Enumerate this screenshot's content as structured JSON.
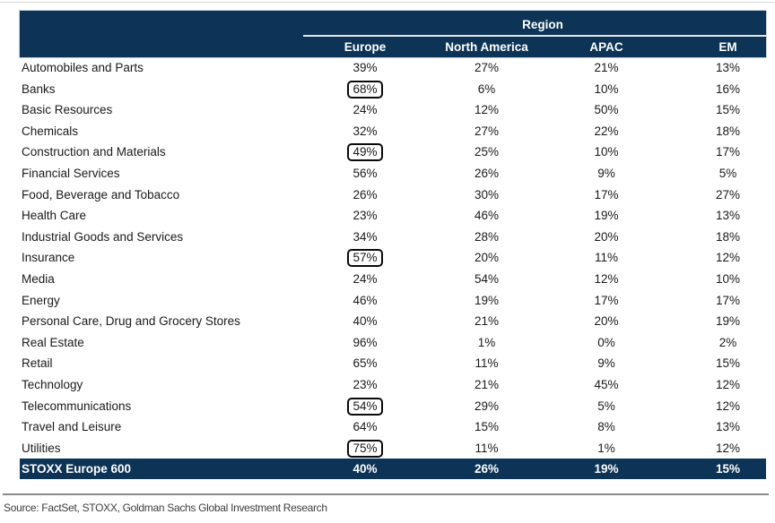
{
  "table": {
    "region_header": "Region",
    "columns": [
      "Europe",
      "North America",
      "APAC",
      "EM"
    ],
    "rows": [
      {
        "label": "Automobiles and Parts",
        "values": [
          "39%",
          "27%",
          "21%",
          "13%"
        ],
        "europe_boxed": false
      },
      {
        "label": "Banks",
        "values": [
          "68%",
          "6%",
          "10%",
          "16%"
        ],
        "europe_boxed": true
      },
      {
        "label": "Basic Resources",
        "values": [
          "24%",
          "12%",
          "50%",
          "15%"
        ],
        "europe_boxed": false
      },
      {
        "label": "Chemicals",
        "values": [
          "32%",
          "27%",
          "22%",
          "18%"
        ],
        "europe_boxed": false
      },
      {
        "label": "Construction and Materials",
        "values": [
          "49%",
          "25%",
          "10%",
          "17%"
        ],
        "europe_boxed": true
      },
      {
        "label": "Financial Services",
        "values": [
          "56%",
          "26%",
          "9%",
          "5%"
        ],
        "europe_boxed": false
      },
      {
        "label": "Food, Beverage and Tobacco",
        "values": [
          "26%",
          "30%",
          "17%",
          "27%"
        ],
        "europe_boxed": false
      },
      {
        "label": "Health Care",
        "values": [
          "23%",
          "46%",
          "19%",
          "13%"
        ],
        "europe_boxed": false
      },
      {
        "label": "Industrial Goods and Services",
        "values": [
          "34%",
          "28%",
          "20%",
          "18%"
        ],
        "europe_boxed": false
      },
      {
        "label": "Insurance",
        "values": [
          "57%",
          "20%",
          "11%",
          "12%"
        ],
        "europe_boxed": true
      },
      {
        "label": "Media",
        "values": [
          "24%",
          "54%",
          "12%",
          "10%"
        ],
        "europe_boxed": false
      },
      {
        "label": "Energy",
        "values": [
          "46%",
          "19%",
          "17%",
          "17%"
        ],
        "europe_boxed": false
      },
      {
        "label": "Personal Care, Drug and Grocery Stores",
        "values": [
          "40%",
          "21%",
          "20%",
          "19%"
        ],
        "europe_boxed": false
      },
      {
        "label": "Real Estate",
        "values": [
          "96%",
          "1%",
          "0%",
          "2%"
        ],
        "europe_boxed": false
      },
      {
        "label": "Retail",
        "values": [
          "65%",
          "11%",
          "9%",
          "15%"
        ],
        "europe_boxed": false
      },
      {
        "label": "Technology",
        "values": [
          "23%",
          "21%",
          "45%",
          "12%"
        ],
        "europe_boxed": false
      },
      {
        "label": "Telecommunications",
        "values": [
          "54%",
          "29%",
          "5%",
          "12%"
        ],
        "europe_boxed": true
      },
      {
        "label": "Travel and Leisure",
        "values": [
          "64%",
          "15%",
          "8%",
          "13%"
        ],
        "europe_boxed": false
      },
      {
        "label": "Utilities",
        "values": [
          "75%",
          "11%",
          "1%",
          "12%"
        ],
        "europe_boxed": true
      }
    ],
    "total_row": {
      "label": "STOXX Europe 600",
      "values": [
        "40%",
        "26%",
        "19%",
        "15%"
      ]
    }
  },
  "source_note": "Source: FactSet, STOXX, Goldman Sachs Global Investment Research",
  "colors": {
    "header_navy": "#0d3456",
    "highlight_box_border": "#0a0a0a",
    "region_underline": "#e3e6e9",
    "bottom_rule_gray": "#8a8a8a",
    "text": "#1a1a1a"
  },
  "chart_data": {
    "type": "table",
    "column_group_label": "Region",
    "columns": [
      "Europe",
      "North America",
      "APAC",
      "EM"
    ],
    "unit": "percent",
    "rows": [
      [
        "Automobiles and Parts",
        39,
        27,
        21,
        13
      ],
      [
        "Banks",
        68,
        6,
        10,
        16
      ],
      [
        "Basic Resources",
        24,
        12,
        50,
        15
      ],
      [
        "Chemicals",
        32,
        27,
        22,
        18
      ],
      [
        "Construction and Materials",
        49,
        25,
        10,
        17
      ],
      [
        "Financial Services",
        56,
        26,
        9,
        5
      ],
      [
        "Food, Beverage and Tobacco",
        26,
        30,
        17,
        27
      ],
      [
        "Health Care",
        23,
        46,
        19,
        13
      ],
      [
        "Industrial Goods and Services",
        34,
        28,
        20,
        18
      ],
      [
        "Insurance",
        57,
        20,
        11,
        12
      ],
      [
        "Media",
        24,
        54,
        12,
        10
      ],
      [
        "Energy",
        46,
        19,
        17,
        17
      ],
      [
        "Personal Care, Drug and Grocery Stores",
        40,
        21,
        20,
        19
      ],
      [
        "Real Estate",
        96,
        1,
        0,
        2
      ],
      [
        "Retail",
        65,
        11,
        9,
        15
      ],
      [
        "Technology",
        23,
        21,
        45,
        12
      ],
      [
        "Telecommunications",
        54,
        29,
        5,
        12
      ],
      [
        "Travel and Leisure",
        64,
        15,
        8,
        13
      ],
      [
        "Utilities",
        75,
        11,
        1,
        12
      ]
    ],
    "total_row": [
      "STOXX Europe 600",
      40,
      26,
      19,
      15
    ],
    "highlighted_cells": [
      {
        "row": "Banks",
        "column": "Europe",
        "value": 68
      },
      {
        "row": "Construction and Materials",
        "column": "Europe",
        "value": 49
      },
      {
        "row": "Insurance",
        "column": "Europe",
        "value": 57
      },
      {
        "row": "Telecommunications",
        "column": "Europe",
        "value": 54
      },
      {
        "row": "Utilities",
        "column": "Europe",
        "value": 75
      }
    ]
  }
}
